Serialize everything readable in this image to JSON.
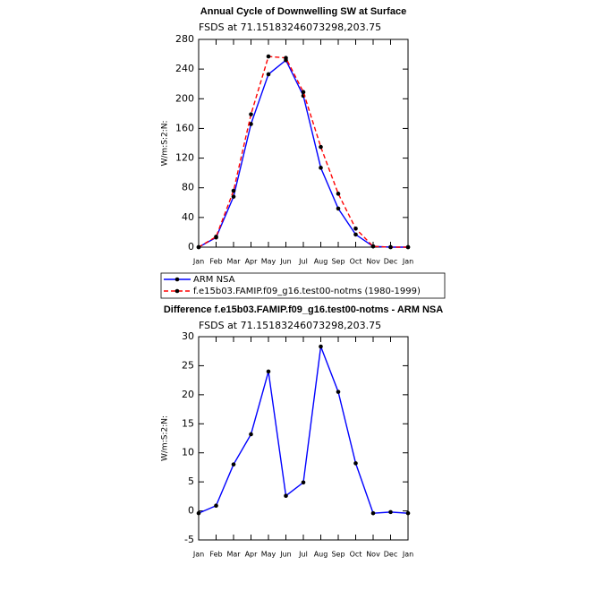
{
  "chart_data": [
    {
      "type": "line",
      "title": "Annual Cycle of Downwelling SW at Surface",
      "subtitle": "FSDS at 71.15183246073298,203.75",
      "y_label": "W/m:S:2:N:",
      "categories": [
        "Jan",
        "Feb",
        "Mar",
        "Apr",
        "May",
        "Jun",
        "Jul",
        "Aug",
        "Sep",
        "Oct",
        "Nov",
        "Dec",
        "Jan"
      ],
      "series": [
        {
          "name": "ARM NSA",
          "color": "#0000ff",
          "dashed": false,
          "values": [
            0,
            13,
            68,
            166,
            233,
            252,
            204,
            107,
            52,
            17,
            1,
            0,
            0
          ]
        },
        {
          "name": "f.e15b03.FAMIP.f09_g16.test00-notms (1980-1999)",
          "color": "#ff0000",
          "dashed": true,
          "values": [
            0,
            14,
            76,
            179,
            257,
            255,
            209,
            135,
            72,
            25,
            1,
            0,
            0
          ]
        }
      ],
      "ylim": [
        0,
        280
      ],
      "yticks": [
        0,
        40,
        80,
        120,
        160,
        200,
        240,
        280
      ],
      "legend": true
    },
    {
      "type": "line",
      "title": "Difference f.e15b03.FAMIP.f09_g16.test00-notms - ARM NSA",
      "subtitle": "FSDS at 71.15183246073298,203.75",
      "y_label": "W/m:S:2:N:",
      "categories": [
        "Jan",
        "Feb",
        "Mar",
        "Apr",
        "May",
        "Jun",
        "Jul",
        "Aug",
        "Sep",
        "Oct",
        "Nov",
        "Dec",
        "Jan"
      ],
      "series": [
        {
          "color": "#0000ff",
          "dashed": false,
          "values": [
            -0.4,
            0.9,
            8,
            13.2,
            24,
            2.6,
            4.9,
            28.3,
            20.5,
            8.2,
            -0.4,
            -0.2,
            -0.4
          ]
        }
      ],
      "ylim": [
        -5,
        30
      ],
      "yticks": [
        -5,
        0,
        5,
        10,
        15,
        20,
        25,
        30
      ],
      "legend": false
    }
  ]
}
